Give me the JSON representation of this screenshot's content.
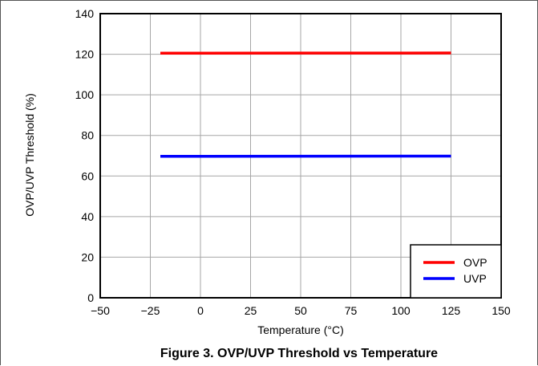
{
  "caption": "Figure 3. OVP/UVP Threshold vs Temperature",
  "chart_data": {
    "type": "line",
    "title": "",
    "xlabel": "Temperature (°C)",
    "ylabel": "OVP/UVP Threshold (%)",
    "xlim": [
      -50,
      150
    ],
    "ylim": [
      0,
      140
    ],
    "xticks": [
      -50,
      -25,
      0,
      25,
      50,
      75,
      100,
      125,
      150
    ],
    "xtick_labels": [
      "−50",
      "−25",
      "0",
      "25",
      "50",
      "75",
      "100",
      "125",
      "150"
    ],
    "yticks": [
      0,
      20,
      40,
      60,
      80,
      100,
      120,
      140
    ],
    "ytick_labels": [
      "0",
      "20",
      "40",
      "60",
      "80",
      "100",
      "120",
      "140"
    ],
    "grid": true,
    "legend_position": "bottom-right",
    "series": [
      {
        "name": "OVP",
        "color": "#ff0000",
        "x": [
          -20,
          125
        ],
        "y": [
          120.5,
          120.6
        ]
      },
      {
        "name": "UVP",
        "color": "#0000ff",
        "x": [
          -20,
          125
        ],
        "y": [
          69.7,
          69.8
        ]
      }
    ]
  }
}
